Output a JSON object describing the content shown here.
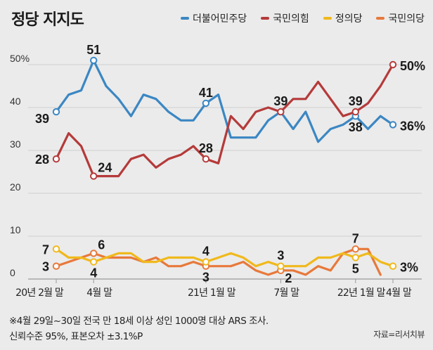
{
  "header": {
    "title": "정당 지지도"
  },
  "colors": {
    "background": "#ebebeb",
    "grid": "#cfcfcf",
    "axis": "#9a9a9a"
  },
  "chart_data": {
    "type": "line",
    "title": "정당 지지도",
    "xlabel": "",
    "ylabel": "",
    "ylim": [
      0,
      55
    ],
    "y_ticks": [
      {
        "value": 50,
        "label": "50%"
      },
      {
        "value": 40,
        "label": "40"
      },
      {
        "value": 30,
        "label": "30"
      },
      {
        "value": 20,
        "label": "20"
      },
      {
        "value": 10,
        "label": "10"
      },
      {
        "value": 0,
        "label": "0"
      }
    ],
    "x_count": 28,
    "x_ticks": [
      {
        "index": 0,
        "label": "20년 2월 말"
      },
      {
        "index": 3,
        "label": "4월 말"
      },
      {
        "index": 12,
        "label": "21년 1월 말"
      },
      {
        "index": 18,
        "label": "7월 말"
      },
      {
        "index": 24,
        "label": "22년 1월 말"
      },
      {
        "index": 27,
        "label": "4월 말"
      }
    ],
    "legend_position": "top-right",
    "grid": true,
    "series": [
      {
        "name": "더불어민주당",
        "color": "#3b87c3",
        "values": [
          39,
          43,
          44,
          51,
          45,
          42,
          38,
          43,
          42,
          39,
          37,
          37,
          41,
          43,
          33,
          33,
          33,
          37,
          39,
          35,
          39,
          32,
          35,
          36,
          38,
          35,
          38,
          36
        ],
        "markers": [
          {
            "index": 0,
            "label": "39",
            "pos": "left-below"
          },
          {
            "index": 3,
            "label": "51",
            "pos": "above"
          },
          {
            "index": 12,
            "label": "41",
            "pos": "above"
          },
          {
            "index": 24,
            "label": "38",
            "pos": "below"
          },
          {
            "index": 27,
            "label": "36%",
            "pos": "right"
          }
        ]
      },
      {
        "name": "국민의힘",
        "color": "#b53a3a",
        "values": [
          28,
          34,
          31,
          24,
          24,
          24,
          28,
          29,
          26,
          28,
          29,
          31,
          28,
          27,
          38,
          35,
          39,
          40,
          39,
          42,
          42,
          46,
          42,
          38,
          39,
          41,
          45,
          50
        ],
        "markers": [
          {
            "index": 0,
            "label": "28",
            "pos": "left"
          },
          {
            "index": 3,
            "label": "24",
            "pos": "above-right"
          },
          {
            "index": 12,
            "label": "28",
            "pos": "above"
          },
          {
            "index": 18,
            "label": "39",
            "pos": "above"
          },
          {
            "index": 24,
            "label": "39",
            "pos": "above"
          },
          {
            "index": 27,
            "label": "50%",
            "pos": "right"
          }
        ]
      },
      {
        "name": "정의당",
        "color": "#f0b91c",
        "values": [
          7,
          5,
          5,
          4,
          5,
          6,
          6,
          4,
          4,
          5,
          5,
          5,
          4,
          5,
          6,
          5,
          3,
          4,
          3,
          3,
          3,
          5,
          5,
          6,
          5,
          6,
          4,
          3
        ],
        "markers": [
          {
            "index": 0,
            "label": "7",
            "pos": "left"
          },
          {
            "index": 3,
            "label": "4",
            "pos": "below"
          },
          {
            "index": 12,
            "label": "4",
            "pos": "above"
          },
          {
            "index": 18,
            "label": "3",
            "pos": "above"
          },
          {
            "index": 24,
            "label": "5",
            "pos": "below"
          },
          {
            "index": 27,
            "label": "3%",
            "pos": "right"
          }
        ]
      },
      {
        "name": "국민의당",
        "color": "#e7793b",
        "values": [
          3,
          4,
          5,
          6,
          5,
          5,
          5,
          4,
          5,
          3,
          3,
          4,
          3,
          3,
          3,
          4,
          2,
          1,
          2,
          2,
          1,
          3,
          2,
          6,
          7,
          7,
          1,
          null
        ],
        "markers": [
          {
            "index": 0,
            "label": "3",
            "pos": "left"
          },
          {
            "index": 3,
            "label": "6",
            "pos": "above-right"
          },
          {
            "index": 12,
            "label": "3",
            "pos": "below"
          },
          {
            "index": 18,
            "label": "2",
            "pos": "below-right"
          },
          {
            "index": 24,
            "label": "7",
            "pos": "above"
          }
        ]
      }
    ]
  },
  "footnote": {
    "line1": "※4월 29일~30일 전국 만 18세 이상 성인 1000명 대상 ARS 조사.",
    "line2": "신뢰수준 95%, 표본오차 ±3.1%P",
    "source": "자료=리서치뷰"
  }
}
